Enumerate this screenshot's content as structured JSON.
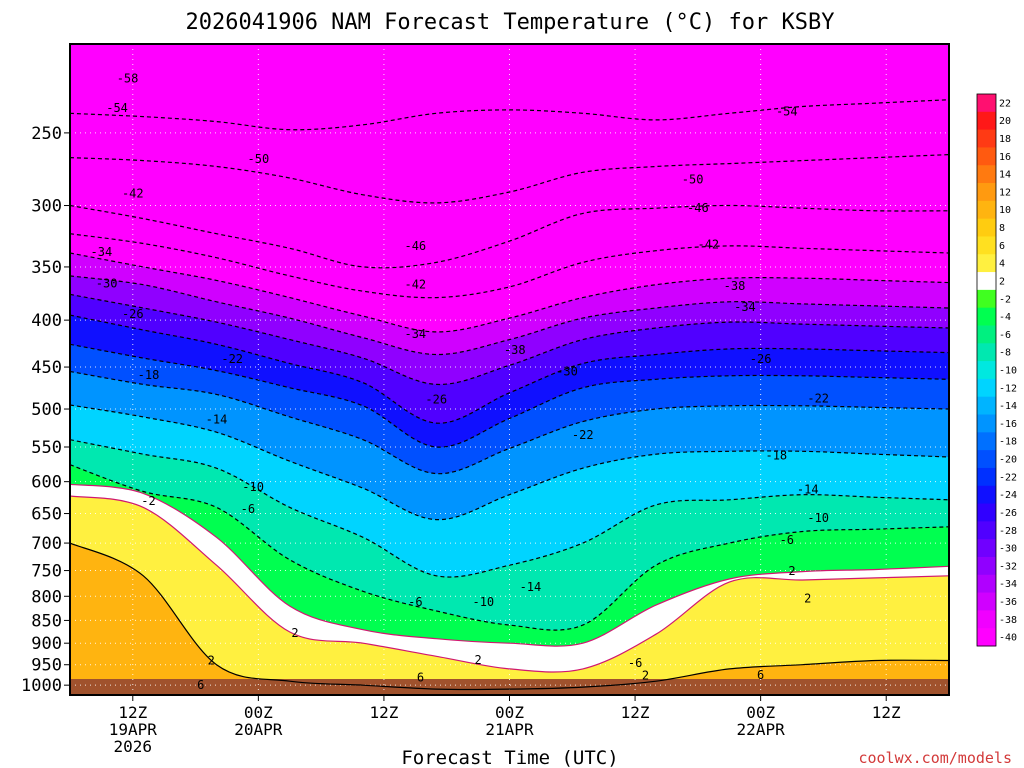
{
  "chart_data": {
    "type": "heatmap",
    "title": "2026041906 NAM Forecast Temperature (°C) for KSBY",
    "xlabel": "Forecast Time (UTC)",
    "ylabel": "",
    "credit": "coolwx.com/models",
    "y_scale": "log-pressure",
    "y_range_hpa": [
      200,
      1025
    ],
    "y_ticks": [
      250,
      300,
      350,
      400,
      450,
      500,
      550,
      600,
      650,
      700,
      750,
      800,
      850,
      900,
      950,
      1000
    ],
    "x_range_hours": [
      0,
      84
    ],
    "x_ticks": [
      {
        "hour": 6,
        "lines": [
          "12Z",
          "19APR",
          "2026"
        ]
      },
      {
        "hour": 18,
        "lines": [
          "00Z",
          "20APR"
        ]
      },
      {
        "hour": 30,
        "lines": [
          "12Z"
        ]
      },
      {
        "hour": 42,
        "lines": [
          "00Z",
          "21APR"
        ]
      },
      {
        "hour": 54,
        "lines": [
          "12Z"
        ]
      },
      {
        "hour": 66,
        "lines": [
          "00Z",
          "22APR"
        ]
      },
      {
        "hour": 78,
        "lines": [
          "12Z"
        ]
      }
    ],
    "grid": "dotted",
    "legend": "right",
    "colorbar": {
      "labels": [
        22,
        20,
        18,
        16,
        14,
        12,
        10,
        8,
        6,
        4,
        2,
        -2,
        -4,
        -6,
        -8,
        -10,
        -12,
        -14,
        -16,
        -18,
        -20,
        -22,
        -24,
        -26,
        -28,
        -30,
        -32,
        -34,
        -36,
        -38,
        -40
      ],
      "colors": [
        "#ff1070",
        "#ff1818",
        "#ff3a14",
        "#ff5a10",
        "#ff7a10",
        "#ff9a10",
        "#ffb410",
        "#ffcc10",
        "#ffe020",
        "#fff040",
        "#ffffff",
        "#40ff20",
        "#00ff50",
        "#00f080",
        "#00e8b0",
        "#00e8e0",
        "#00d4ff",
        "#00b4ff",
        "#0094ff",
        "#0070ff",
        "#0050ff",
        "#0030ff",
        "#1010ff",
        "#3000ff",
        "#5000ff",
        "#7000ff",
        "#9000ff",
        "#b000ff",
        "#d000ff",
        "#f000ff",
        "#ff00ff"
      ]
    },
    "isotherms": [
      {
        "temp": -54,
        "p_hpa": [
          238,
          240,
          243,
          248,
          245,
          238,
          236,
          238,
          242,
          238,
          234,
          232,
          230
        ]
      },
      {
        "temp": -50,
        "p_hpa": [
          266,
          268,
          272,
          280,
          292,
          298,
          290,
          276,
          272,
          270,
          268,
          266,
          264
        ]
      },
      {
        "temp": -46,
        "p_hpa": [
          300,
          310,
          322,
          334,
          350,
          346,
          328,
          306,
          302,
          300,
          302,
          304,
          304
        ]
      },
      {
        "temp": -42,
        "p_hpa": [
          322,
          330,
          342,
          358,
          372,
          378,
          368,
          346,
          336,
          332,
          334,
          336,
          338
        ]
      },
      {
        "temp": -38,
        "p_hpa": [
          338,
          350,
          362,
          378,
          396,
          412,
          398,
          378,
          366,
          360,
          360,
          362,
          364
        ]
      },
      {
        "temp": -34,
        "p_hpa": [
          358,
          366,
          382,
          398,
          418,
          436,
          420,
          398,
          388,
          382,
          384,
          386,
          388
        ]
      },
      {
        "temp": -30,
        "p_hpa": [
          375,
          388,
          402,
          420,
          440,
          470,
          448,
          420,
          408,
          402,
          404,
          406,
          408
        ]
      },
      {
        "temp": -26,
        "p_hpa": [
          395,
          410,
          425,
          446,
          468,
          518,
          480,
          446,
          436,
          430,
          430,
          432,
          434
        ]
      },
      {
        "temp": -22,
        "p_hpa": [
          425,
          440,
          454,
          474,
          496,
          550,
          512,
          474,
          464,
          460,
          460,
          462,
          464
        ]
      },
      {
        "temp": -18,
        "p_hpa": [
          455,
          470,
          482,
          510,
          540,
          588,
          552,
          516,
          500,
          496,
          496,
          498,
          500
        ]
      },
      {
        "temp": -14,
        "p_hpa": [
          495,
          510,
          530,
          570,
          610,
          660,
          620,
          580,
          560,
          556,
          556,
          560,
          564
        ]
      },
      {
        "temp": -10,
        "p_hpa": [
          540,
          560,
          580,
          640,
          690,
          760,
          740,
          700,
          636,
          628,
          620,
          624,
          628
        ]
      },
      {
        "temp": -6,
        "p_hpa": [
          575,
          615,
          640,
          730,
          790,
          830,
          860,
          860,
          740,
          700,
          680,
          676,
          672
        ]
      },
      {
        "temp": -2,
        "p_hpa": [
          604,
          618,
          690,
          820,
          870,
          890,
          900,
          900,
          818,
          766,
          752,
          748,
          742
        ]
      },
      {
        "temp": 2,
        "p_hpa": [
          622,
          640,
          740,
          875,
          900,
          930,
          960,
          960,
          880,
          772,
          768,
          764,
          760
        ]
      },
      {
        "temp": 6,
        "p_hpa": [
          700,
          760,
          950,
          990,
          1000,
          1010,
          1010,
          1005,
          990,
          960,
          950,
          940,
          940
        ]
      }
    ],
    "contour_labels": [
      {
        "text": "-58",
        "hour": 5.5,
        "p": 218
      },
      {
        "text": "-54",
        "hour": 4.5,
        "p": 235
      },
      {
        "text": "-54",
        "hour": 68.5,
        "p": 237
      },
      {
        "text": "-50",
        "hour": 18,
        "p": 267
      },
      {
        "text": "-50",
        "hour": 59.5,
        "p": 281
      },
      {
        "text": "-46",
        "hour": 33,
        "p": 332
      },
      {
        "text": "-46",
        "hour": 60,
        "p": 302
      },
      {
        "text": "-42",
        "hour": 6,
        "p": 291
      },
      {
        "text": "-42",
        "hour": 33,
        "p": 366
      },
      {
        "text": "-42",
        "hour": 61,
        "p": 331
      },
      {
        "text": "-38",
        "hour": 42.5,
        "p": 431
      },
      {
        "text": "-38",
        "hour": 63.5,
        "p": 367
      },
      {
        "text": "-34",
        "hour": 3,
        "p": 337
      },
      {
        "text": "-34",
        "hour": 33,
        "p": 414
      },
      {
        "text": "-34",
        "hour": 64.5,
        "p": 387
      },
      {
        "text": "-30",
        "hour": 3.5,
        "p": 365
      },
      {
        "text": "-30",
        "hour": 47.5,
        "p": 455
      },
      {
        "text": "-26",
        "hour": 6,
        "p": 394
      },
      {
        "text": "-26",
        "hour": 35,
        "p": 488
      },
      {
        "text": "-26",
        "hour": 66,
        "p": 441
      },
      {
        "text": "-22",
        "hour": 15.5,
        "p": 441
      },
      {
        "text": "-22",
        "hour": 49,
        "p": 534
      },
      {
        "text": "-22",
        "hour": 71.5,
        "p": 487
      },
      {
        "text": "-18",
        "hour": 7.5,
        "p": 459
      },
      {
        "text": "-18",
        "hour": 67.5,
        "p": 562
      },
      {
        "text": "-14",
        "hour": 14,
        "p": 513
      },
      {
        "text": "-14",
        "hour": 44,
        "p": 782
      },
      {
        "text": "-14",
        "hour": 70.5,
        "p": 612
      },
      {
        "text": "-10",
        "hour": 17.5,
        "p": 608
      },
      {
        "text": "-10",
        "hour": 39.5,
        "p": 812
      },
      {
        "text": "-10",
        "hour": 71.5,
        "p": 657
      },
      {
        "text": "-6",
        "hour": 17,
        "p": 643
      },
      {
        "text": "-6",
        "hour": 33,
        "p": 812
      },
      {
        "text": "-6",
        "hour": 54,
        "p": 946
      },
      {
        "text": "-6",
        "hour": 68.5,
        "p": 695
      },
      {
        "text": "-2",
        "hour": 7.5,
        "p": 630
      },
      {
        "text": "2",
        "hour": 21.5,
        "p": 877
      },
      {
        "text": "2",
        "hour": 39,
        "p": 939
      },
      {
        "text": "2",
        "hour": 55,
        "p": 976
      },
      {
        "text": "2",
        "hour": 69,
        "p": 751
      },
      {
        "text": "2",
        "hour": 70.5,
        "p": 805
      },
      {
        "text": "2",
        "hour": 13.5,
        "p": 940
      },
      {
        "text": "6",
        "hour": 12.5,
        "p": 1000
      },
      {
        "text": "6",
        "hour": 33.5,
        "p": 981
      },
      {
        "text": "6",
        "hour": 66,
        "p": 975
      }
    ],
    "ground_color": "#a0522d"
  }
}
